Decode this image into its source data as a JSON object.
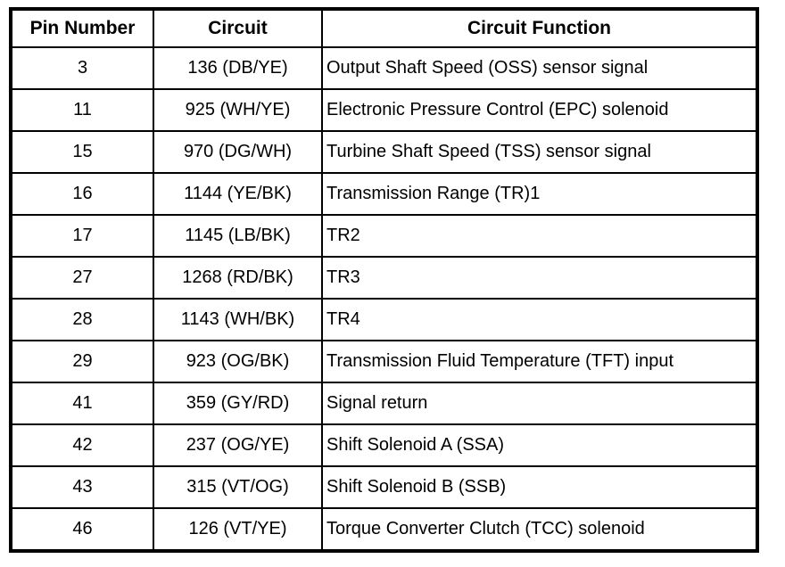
{
  "colors": {
    "background": "#ffffff",
    "border": "#000000",
    "text": "#000000"
  },
  "table": {
    "columns": [
      "Pin Number",
      "Circuit",
      "Circuit Function"
    ],
    "rows": [
      {
        "pin": "3",
        "circuit": "136 (DB/YE)",
        "function": "Output Shaft Speed (OSS) sensor signal"
      },
      {
        "pin": "11",
        "circuit": "925 (WH/YE)",
        "function": "Electronic Pressure Control (EPC) solenoid"
      },
      {
        "pin": "15",
        "circuit": "970 (DG/WH)",
        "function": "Turbine Shaft Speed (TSS) sensor signal"
      },
      {
        "pin": "16",
        "circuit": "1144 (YE/BK)",
        "function": "Transmission Range (TR)1"
      },
      {
        "pin": "17",
        "circuit": "1145 (LB/BK)",
        "function": "TR2"
      },
      {
        "pin": "27",
        "circuit": "1268 (RD/BK)",
        "function": "TR3"
      },
      {
        "pin": "28",
        "circuit": "1143 (WH/BK)",
        "function": "TR4"
      },
      {
        "pin": "29",
        "circuit": "923 (OG/BK)",
        "function": "Transmission Fluid Temperature (TFT) input"
      },
      {
        "pin": "41",
        "circuit": "359 (GY/RD)",
        "function": "Signal return"
      },
      {
        "pin": "42",
        "circuit": "237 (OG/YE)",
        "function": "Shift Solenoid A (SSA)"
      },
      {
        "pin": "43",
        "circuit": "315 (VT/OG)",
        "function": "Shift Solenoid B (SSB)"
      },
      {
        "pin": "46",
        "circuit": "126 (VT/YE)",
        "function": "Torque Converter Clutch (TCC) solenoid"
      }
    ]
  }
}
